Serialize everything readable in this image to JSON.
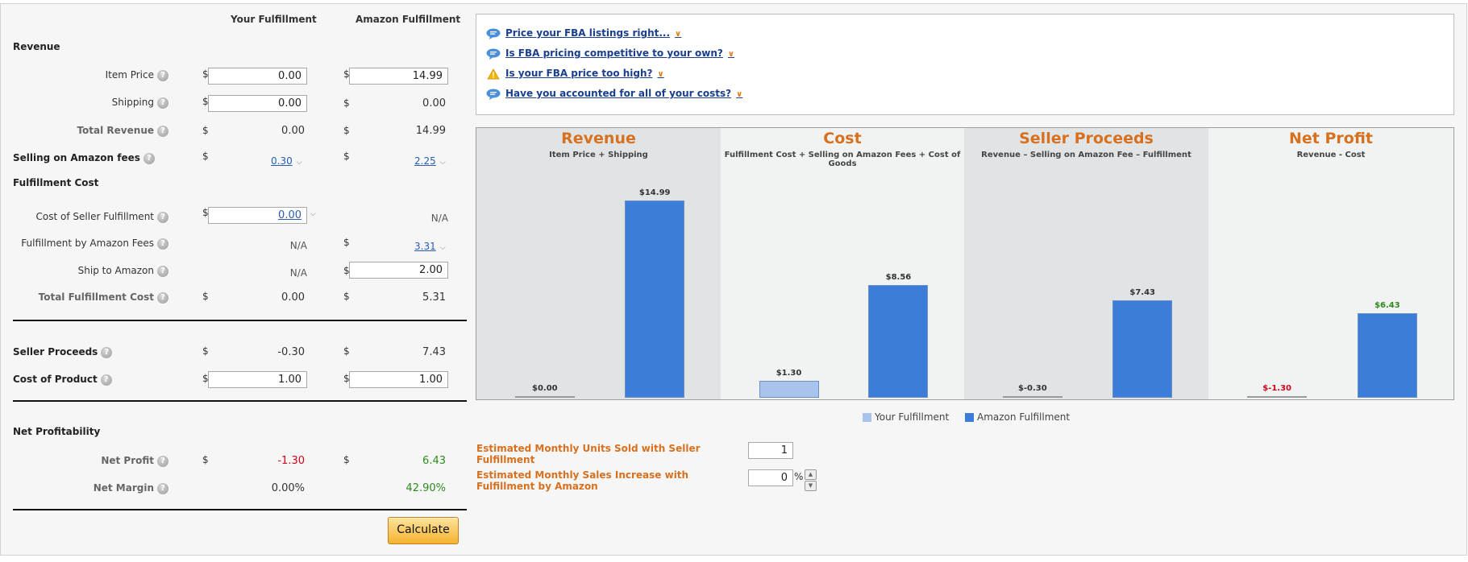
{
  "columns": {
    "your": "Your Fulfillment",
    "amazon": "Amazon Fulfillment"
  },
  "sections": {
    "revenue": "Revenue",
    "fulfillment_cost": "Fulfillment Cost",
    "net_profitability": "Net Profitability"
  },
  "currency": "$",
  "rows": {
    "item_price": {
      "label": "Item Price",
      "your": "0.00",
      "amazon": "14.99"
    },
    "shipping": {
      "label": "Shipping",
      "your": "0.00",
      "amazon": "0.00"
    },
    "total_revenue": {
      "label": "Total Revenue",
      "your": "0.00",
      "amazon": "14.99"
    },
    "selling_fees": {
      "label": "Selling on Amazon fees",
      "your": "0.30",
      "amazon": "2.25"
    },
    "seller_fulfillment": {
      "label": "Cost of Seller Fulfillment",
      "your": "0.00",
      "amazon": "N/A"
    },
    "fba_fees": {
      "label": "Fulfillment by Amazon Fees",
      "your": "N/A",
      "amazon": "3.31"
    },
    "ship_to_amazon": {
      "label": "Ship to Amazon",
      "your": "N/A",
      "amazon": "2.00"
    },
    "total_fulfillment": {
      "label": "Total Fulfillment Cost",
      "your": "0.00",
      "amazon": "5.31"
    },
    "seller_proceeds": {
      "label": "Seller Proceeds",
      "your": "-0.30",
      "amazon": "7.43"
    },
    "cost_of_product": {
      "label": "Cost of Product",
      "your": "1.00",
      "amazon": "1.00"
    },
    "net_profit": {
      "label": "Net Profit",
      "your": "-1.30",
      "amazon": "6.43"
    },
    "net_margin": {
      "label": "Net Margin",
      "your": "0.00%",
      "amazon": "42.90%"
    }
  },
  "calculate_label": "Calculate",
  "tips": [
    {
      "text": "Price your FBA listings right...",
      "icon": "speech-bubble-icon"
    },
    {
      "text": "Is FBA pricing competitive to your own?",
      "icon": "speech-bubble-icon"
    },
    {
      "text": "Is your FBA price too high?",
      "icon": "warning-icon"
    },
    {
      "text": "Have you accounted for all of your costs?",
      "icon": "speech-bubble-icon"
    }
  ],
  "chart_data": {
    "type": "bar",
    "colors": {
      "your": "#a9c4ec",
      "amazon": "#3c7dd9",
      "title": "#d7701f",
      "negative": "#d0021b",
      "positive": "#2e8b1e"
    },
    "series_names": [
      "Your Fulfillment",
      "Amazon Fulfillment"
    ],
    "panels": [
      {
        "title": "Revenue",
        "subtitle": "Item Price + Shipping",
        "your": 0.0,
        "amazon": 14.99,
        "your_label": "$0.00",
        "amazon_label": "$14.99"
      },
      {
        "title": "Cost",
        "subtitle": "Fulfillment Cost + Selling on Amazon Fees + Cost of Goods",
        "your": 1.3,
        "amazon": 8.56,
        "your_label": "$1.30",
        "amazon_label": "$8.56"
      },
      {
        "title": "Seller Proceeds",
        "subtitle": "Revenue – Selling on Amazon Fee – Fulfillment",
        "your": -0.3,
        "amazon": 7.43,
        "your_label": "$-0.30",
        "amazon_label": "$7.43"
      },
      {
        "title": "Net Profit",
        "subtitle": "Revenue - Cost",
        "your": -1.3,
        "amazon": 6.43,
        "your_label": "$-1.30",
        "amazon_label": "$6.43"
      }
    ],
    "ymax": 14.99
  },
  "estimates": {
    "units": {
      "label": "Estimated Monthly Units Sold with Seller Fulfillment",
      "value": "1"
    },
    "increase": {
      "label": "Estimated Monthly Sales Increase with Fulfillment by Amazon",
      "value": "0",
      "unit": "%"
    }
  }
}
